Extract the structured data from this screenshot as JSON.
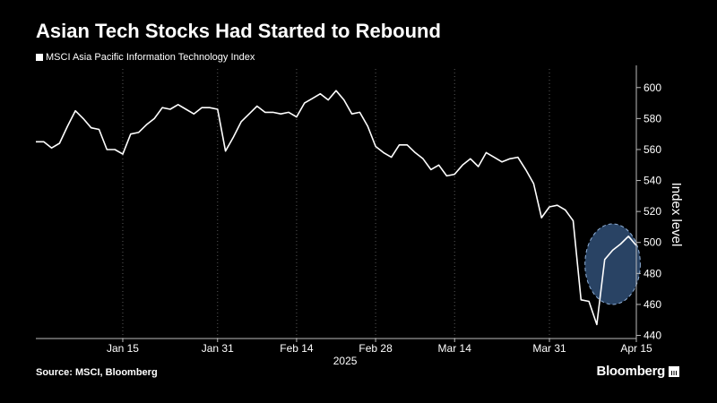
{
  "header": {
    "title": "Asian Tech Stocks Had Started to Rebound"
  },
  "footer": {
    "source": "Source: MSCI, Bloomberg",
    "brand": "Bloomberg",
    "brand_icon": "bloomberg-terminal-icon"
  },
  "colors": {
    "background": "#000000",
    "line": "#ffffff",
    "highlight_fill": "#3b5f8f",
    "highlight_stroke": "#8fb0d8"
  },
  "chart_data": {
    "type": "line",
    "title": "Asian Tech Stocks Had Started to Rebound",
    "ylabel": "Index level",
    "xlabel": "",
    "year_label": "2025",
    "ylim": [
      438,
      612
    ],
    "yticks": [
      440,
      460,
      480,
      500,
      520,
      540,
      560,
      580,
      600
    ],
    "xticks": [
      {
        "label": "Jan 15",
        "index": 11
      },
      {
        "label": "Jan 31",
        "index": 23
      },
      {
        "label": "Feb 14",
        "index": 33
      },
      {
        "label": "Feb 28",
        "index": 43
      },
      {
        "label": "Mar 14",
        "index": 53
      },
      {
        "label": "Mar 31",
        "index": 65
      },
      {
        "label": "Apr 15",
        "index": 76
      }
    ],
    "y_axis_side": "right",
    "grid": "vertical-dotted",
    "legend_position": "top-left",
    "series": [
      {
        "name": "MSCI Asia Pacific Information Technology Index",
        "values": [
          565,
          565,
          561,
          564,
          575,
          585,
          580,
          574,
          573,
          560,
          560,
          557,
          570,
          571,
          576,
          580,
          587,
          586,
          589,
          586,
          583,
          587,
          587,
          586,
          559,
          568,
          578,
          583,
          588,
          584,
          584,
          583,
          584,
          581,
          590,
          593,
          596,
          592,
          598,
          592,
          583,
          584,
          575,
          562,
          558,
          555,
          563,
          563,
          558,
          554,
          547,
          550,
          543,
          544,
          550,
          554,
          549,
          558,
          555,
          552,
          554,
          555,
          547,
          538,
          516,
          523,
          524,
          521,
          514,
          463,
          462,
          447,
          489,
          495,
          499,
          504,
          498
        ]
      }
    ],
    "highlight": {
      "shape": "ellipse",
      "center": {
        "index": 73,
        "value": 486
      },
      "radius_index": 3.5,
      "radius_value": 26
    }
  }
}
